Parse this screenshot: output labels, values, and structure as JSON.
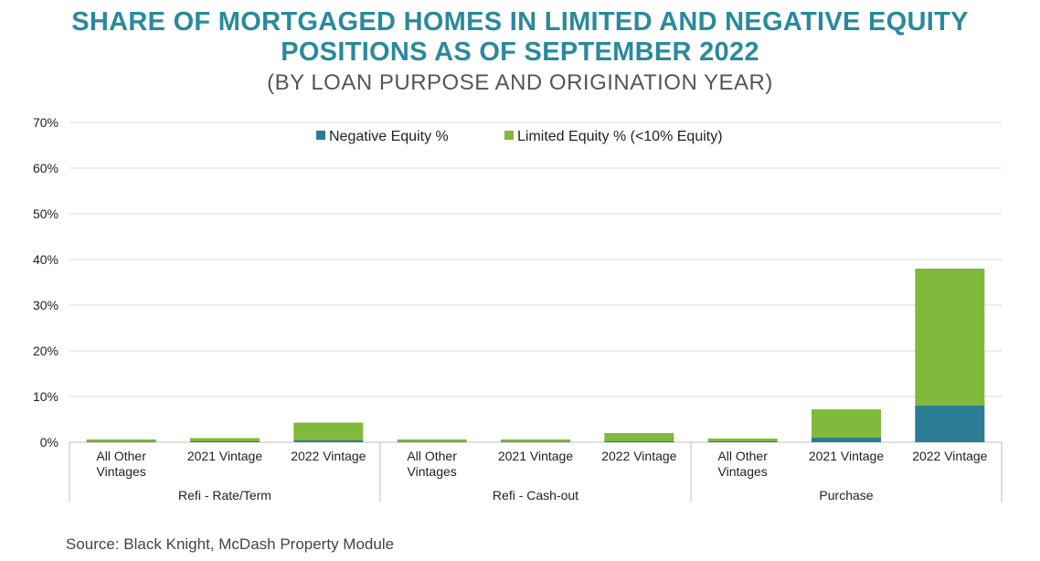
{
  "header": {
    "title_line1": "SHARE OF MORTGAGED HOMES IN LIMITED AND NEGATIVE EQUITY",
    "title_line2": "POSITIONS AS OF SEPTEMBER 2022",
    "subtitle": "(BY LOAN PURPOSE AND ORIGINATION YEAR)"
  },
  "footer": {
    "source": "Source: Black Knight, McDash Property Module"
  },
  "chart_data": {
    "type": "bar",
    "stacked": true,
    "categories": [
      [
        "All Other",
        "Vintages"
      ],
      [
        "2021 Vintage"
      ],
      [
        "2022 Vintage"
      ],
      [
        "All Other",
        "Vintages"
      ],
      [
        "2021 Vintage"
      ],
      [
        "2022 Vintage"
      ],
      [
        "All Other",
        "Vintages"
      ],
      [
        "2021 Vintage"
      ],
      [
        "2022 Vintage"
      ]
    ],
    "groups": [
      {
        "label": "Refi - Rate/Term",
        "count": 3
      },
      {
        "label": "Refi - Cash-out",
        "count": 3
      },
      {
        "label": "Purchase",
        "count": 3
      }
    ],
    "series": [
      {
        "name": "Negative Equity %",
        "color": "#2b7d94",
        "values": [
          0.1,
          0.2,
          0.4,
          0.1,
          0.1,
          0.2,
          0.2,
          1.0,
          8.0
        ]
      },
      {
        "name": "Limited Equity % (<10% Equity)",
        "color": "#80b93b",
        "values": [
          0.5,
          0.7,
          3.9,
          0.5,
          0.5,
          1.8,
          0.6,
          6.2,
          30.0
        ]
      }
    ],
    "yticks": [
      "0%",
      "10%",
      "20%",
      "30%",
      "40%",
      "50%",
      "60%",
      "70%"
    ],
    "ylim": [
      0,
      70
    ],
    "grid": true,
    "legend_position": "top-center"
  }
}
